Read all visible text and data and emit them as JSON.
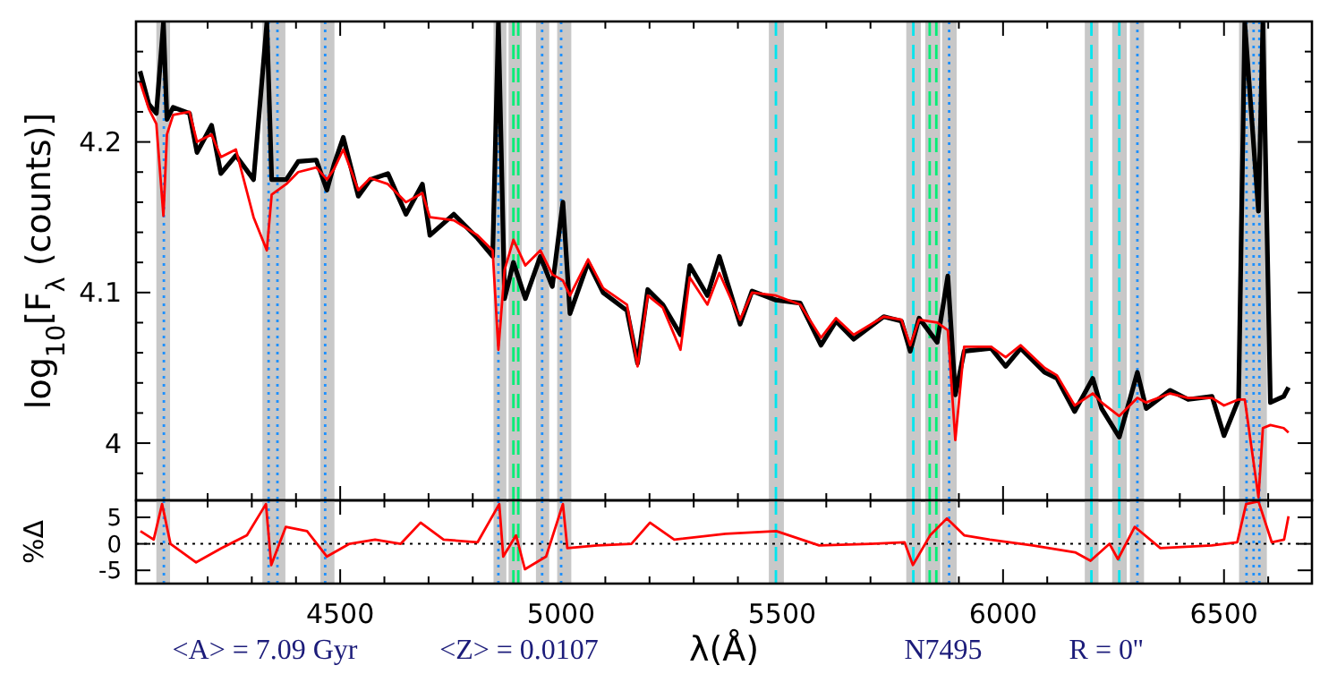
{
  "chart_data": [
    {
      "type": "line",
      "ylabel": "log$_{10}$[F$_{λ}$ (counts)]",
      "xlim": [
        4038,
        6699
      ],
      "ylim": [
        3.962,
        4.28
      ],
      "tick_labels": "y",
      "xticks": [
        {
          "value": 4100,
          "label": null
        },
        {
          "value": 4200,
          "label": null
        },
        {
          "value": 4300,
          "label": null
        },
        {
          "value": 4400,
          "label": null
        },
        4500,
        {
          "value": 4600,
          "label": null
        },
        {
          "value": 4700,
          "label": null
        },
        {
          "value": 4800,
          "label": null
        },
        {
          "value": 4900,
          "label": null
        },
        5000,
        {
          "value": 5100,
          "label": null
        },
        {
          "value": 5200,
          "label": null
        },
        {
          "value": 5300,
          "label": null
        },
        {
          "value": 5400,
          "label": null
        },
        5500,
        {
          "value": 5600,
          "label": null
        },
        {
          "value": 5700,
          "label": null
        },
        {
          "value": 5800,
          "label": null
        },
        {
          "value": 5900,
          "label": null
        },
        6000,
        {
          "value": 6100,
          "label": null
        },
        {
          "value": 6200,
          "label": null
        },
        {
          "value": 6300,
          "label": null
        },
        {
          "value": 6400,
          "label": null
        },
        6500,
        {
          "value": 6600,
          "label": null
        }
      ],
      "yticks": [
        {
          "value": 3.98,
          "label": null
        },
        4,
        {
          "value": 4.02,
          "label": null
        },
        {
          "value": 4.04,
          "label": null
        },
        {
          "value": 4.06,
          "label": null
        },
        {
          "value": 4.08,
          "label": null
        },
        4.1,
        {
          "value": 4.12,
          "label": null
        },
        {
          "value": 4.14,
          "label": null
        },
        {
          "value": 4.16,
          "label": null
        },
        {
          "value": 4.18,
          "label": null
        },
        4.2,
        {
          "value": 4.22,
          "label": null
        },
        {
          "value": 4.24,
          "label": null
        },
        {
          "value": 4.26,
          "label": null
        }
      ],
      "x": [
        4047,
        4067,
        4084,
        4100,
        4108,
        4122,
        4159,
        4176,
        4209,
        4230,
        4264,
        4304,
        4334,
        4345,
        4378,
        4405,
        4446,
        4470,
        4486,
        4507,
        4541,
        4568,
        4608,
        4649,
        4686,
        4703,
        4757,
        4811,
        4845,
        4858,
        4872,
        4892,
        4919,
        4953,
        4980,
        5004,
        5020,
        5061,
        5095,
        5149,
        5173,
        5196,
        5230,
        5270,
        5291,
        5331,
        5358,
        5405,
        5432,
        5486,
        5541,
        5588,
        5622,
        5662,
        5730,
        5770,
        5790,
        5810,
        5851,
        5875,
        5892,
        5912,
        5973,
        6006,
        6040,
        6094,
        6122,
        6162,
        6203,
        6223,
        6263,
        6304,
        6324,
        6378,
        6419,
        6473,
        6500,
        6533,
        6547,
        6578,
        6588,
        6605,
        6635,
        6646
      ],
      "series": [
        {
          "color": "#000000",
          "values": [
            4.247,
            4.225,
            4.219,
            4.279,
            4.215,
            4.223,
            4.219,
            4.193,
            4.211,
            4.179,
            4.191,
            4.175,
            4.279,
            4.175,
            4.175,
            4.187,
            4.188,
            4.168,
            4.185,
            4.203,
            4.164,
            4.175,
            4.179,
            4.152,
            4.172,
            4.138,
            4.152,
            4.136,
            4.124,
            4.279,
            4.096,
            4.12,
            4.096,
            4.124,
            4.104,
            4.16,
            4.086,
            4.12,
            4.1,
            4.088,
            4.053,
            4.102,
            4.092,
            4.072,
            4.118,
            4.098,
            4.124,
            4.079,
            4.101,
            4.095,
            4.093,
            4.065,
            4.081,
            4.069,
            4.084,
            4.081,
            4.061,
            4.083,
            4.067,
            4.111,
            4.032,
            4.061,
            4.063,
            4.051,
            4.063,
            4.047,
            4.043,
            4.021,
            4.043,
            4.023,
            4.004,
            4.047,
            4.023,
            4.035,
            4.029,
            4.031,
            4.005,
            4.029,
            4.279,
            4.154,
            4.279,
            4.027,
            4.031,
            4.037
          ]
        },
        {
          "color": "#ff0000",
          "values": [
            4.24,
            4.222,
            4.212,
            4.151,
            4.205,
            4.218,
            4.22,
            4.2,
            4.205,
            4.19,
            4.195,
            4.15,
            4.128,
            4.165,
            4.172,
            4.18,
            4.183,
            4.175,
            4.182,
            4.195,
            4.168,
            4.176,
            4.172,
            4.16,
            4.166,
            4.15,
            4.148,
            4.138,
            4.128,
            4.062,
            4.115,
            4.135,
            4.118,
            4.128,
            4.112,
            4.108,
            4.098,
            4.122,
            4.103,
            4.092,
            4.051,
            4.098,
            4.09,
            4.062,
            4.11,
            4.092,
            4.113,
            4.082,
            4.1,
            4.098,
            4.092,
            4.07,
            4.083,
            4.072,
            4.084,
            4.082,
            4.065,
            4.082,
            4.08,
            4.075,
            4.002,
            4.064,
            4.064,
            4.057,
            4.065,
            4.05,
            4.045,
            4.025,
            4.033,
            4.027,
            4.018,
            4.03,
            4.027,
            4.033,
            4.03,
            4.03,
            4.025,
            4.029,
            4.029,
            3.964,
            4.01,
            4.012,
            4.01,
            4.007
          ]
        }
      ],
      "bands": [
        {
          "axis": "x",
          "from": 4084,
          "to": 4115,
          "color": "#c8c8c8"
        },
        {
          "axis": "x",
          "from": 4324,
          "to": 4376,
          "color": "#c8c8c8"
        },
        {
          "axis": "x",
          "from": 4455,
          "to": 4487,
          "color": "#c8c8c8"
        },
        {
          "axis": "x",
          "from": 4847,
          "to": 4876,
          "color": "#c8c8c8"
        },
        {
          "axis": "x",
          "from": 4881,
          "to": 4911,
          "color": "#c8c8c8"
        },
        {
          "axis": "x",
          "from": 4943,
          "to": 4973,
          "color": "#c8c8c8"
        },
        {
          "axis": "x",
          "from": 4991,
          "to": 5023,
          "color": "#c8c8c8"
        },
        {
          "axis": "x",
          "from": 5470,
          "to": 5504,
          "color": "#c8c8c8"
        },
        {
          "axis": "x",
          "from": 5781,
          "to": 5814,
          "color": "#c8c8c8"
        },
        {
          "axis": "x",
          "from": 5824,
          "to": 5858,
          "color": "#c8c8c8"
        },
        {
          "axis": "x",
          "from": 5862,
          "to": 5895,
          "color": "#c8c8c8"
        },
        {
          "axis": "x",
          "from": 6185,
          "to": 6216,
          "color": "#c8c8c8"
        },
        {
          "axis": "x",
          "from": 6247,
          "to": 6280,
          "color": "#c8c8c8"
        },
        {
          "axis": "x",
          "from": 6287,
          "to": 6319,
          "color": "#c8c8c8"
        },
        {
          "axis": "x",
          "from": 6534,
          "to": 6597,
          "color": "#c8c8c8"
        }
      ],
      "ref_lines": [
        {
          "axis": "x",
          "value": 4101,
          "color": "#1e90ff",
          "line_style": "dotted"
        },
        {
          "axis": "x",
          "value": 4338,
          "color": "#1e90ff",
          "line_style": "dotted"
        },
        {
          "axis": "x",
          "value": 4358,
          "color": "#1e90ff",
          "line_style": "dotted"
        },
        {
          "axis": "x",
          "value": 4466,
          "color": "#1e90ff",
          "line_style": "dotted"
        },
        {
          "axis": "x",
          "value": 4858,
          "color": "#1e90ff",
          "line_style": "dotted"
        },
        {
          "axis": "x",
          "value": 4892,
          "color": "#00ee76",
          "line_style": "dashed"
        },
        {
          "axis": "x",
          "value": 4903,
          "color": "#00ee76",
          "line_style": "dashed"
        },
        {
          "axis": "x",
          "value": 4957,
          "color": "#1e90ff",
          "line_style": "dotted"
        },
        {
          "axis": "x",
          "value": 5000,
          "color": "#1e90ff",
          "line_style": "dotted"
        },
        {
          "axis": "x",
          "value": 5486,
          "color": "#00e5ee",
          "line_style": "dashed"
        },
        {
          "axis": "x",
          "value": 5797,
          "color": "#00e5ee",
          "line_style": "dashed"
        },
        {
          "axis": "x",
          "value": 5834,
          "color": "#00ee76",
          "line_style": "dashed"
        },
        {
          "axis": "x",
          "value": 5849,
          "color": "#00ee76",
          "line_style": "dashed"
        },
        {
          "axis": "x",
          "value": 5878,
          "color": "#1e90ff",
          "line_style": "dotted"
        },
        {
          "axis": "x",
          "value": 6200,
          "color": "#00e5ee",
          "line_style": "dashed"
        },
        {
          "axis": "x",
          "value": 6263,
          "color": "#00e5ee",
          "line_style": "dashed"
        },
        {
          "axis": "x",
          "value": 6304,
          "color": "#1e90ff",
          "line_style": "dotted"
        },
        {
          "axis": "x",
          "value": 6551,
          "color": "#1e90ff",
          "line_style": "dotted"
        },
        {
          "axis": "x",
          "value": 6567,
          "color": "#1e90ff",
          "line_style": "dotted"
        },
        {
          "axis": "x",
          "value": 6580,
          "color": "#1e90ff",
          "line_style": "dotted"
        }
      ]
    },
    {
      "type": "line",
      "xlabel": "λ(Å)",
      "ylabel": "%Δ",
      "xlim": [
        4038,
        6699
      ],
      "ylim": [
        -7.5,
        8.2
      ],
      "xticks": [
        {
          "value": 4100,
          "label": null
        },
        {
          "value": 4200,
          "label": null
        },
        {
          "value": 4300,
          "label": null
        },
        {
          "value": 4400,
          "label": null
        },
        4500,
        {
          "value": 4600,
          "label": null
        },
        {
          "value": 4700,
          "label": null
        },
        {
          "value": 4800,
          "label": null
        },
        {
          "value": 4900,
          "label": null
        },
        5000,
        {
          "value": 5100,
          "label": null
        },
        {
          "value": 5200,
          "label": null
        },
        {
          "value": 5300,
          "label": null
        },
        {
          "value": 5400,
          "label": null
        },
        5500,
        {
          "value": 5600,
          "label": null
        },
        {
          "value": 5700,
          "label": null
        },
        {
          "value": 5800,
          "label": null
        },
        {
          "value": 5900,
          "label": null
        },
        6000,
        {
          "value": 6100,
          "label": null
        },
        {
          "value": 6200,
          "label": null
        },
        {
          "value": 6300,
          "label": null
        },
        {
          "value": 6400,
          "label": null
        },
        6500,
        {
          "value": 6600,
          "label": null
        }
      ],
      "yticks": [
        -5,
        0,
        5
      ],
      "x": [
        4048,
        4078,
        4097,
        4116,
        4174,
        4232,
        4289,
        4332,
        4344,
        4377,
        4425,
        4470,
        4521,
        4579,
        4637,
        4682,
        4734,
        4811,
        4860,
        4869,
        4898,
        4918,
        4966,
        5004,
        5014,
        5082,
        5159,
        5201,
        5256,
        5372,
        5487,
        5584,
        5700,
        5777,
        5796,
        5835,
        5873,
        5912,
        5970,
        6067,
        6163,
        6198,
        6241,
        6260,
        6298,
        6356,
        6472,
        6530,
        6550,
        6578,
        6608,
        6636,
        6646
      ],
      "series": [
        {
          "color": "#ff0000",
          "values": [
            2.4,
            0.8,
            7.5,
            0,
            -3.5,
            -0.8,
            1.6,
            7.5,
            -4,
            3.2,
            2.4,
            -2.4,
            0,
            0.8,
            0,
            4,
            0.8,
            0.3,
            7.5,
            -2.4,
            1.6,
            -4.8,
            -2.4,
            7.5,
            -0.8,
            -0.3,
            0,
            4,
            0.8,
            1.9,
            2.4,
            -0.3,
            0,
            0.3,
            -4,
            1.6,
            4.8,
            1.6,
            0.8,
            -0.3,
            -1.6,
            -3.2,
            0,
            -2.9,
            3.2,
            -0.8,
            -0.3,
            0.3,
            7.5,
            8,
            0.3,
            0.8,
            5.2
          ]
        }
      ],
      "bands": [
        {
          "axis": "x",
          "from": 4084,
          "to": 4115,
          "color": "#c8c8c8"
        },
        {
          "axis": "x",
          "from": 4324,
          "to": 4376,
          "color": "#c8c8c8"
        },
        {
          "axis": "x",
          "from": 4455,
          "to": 4487,
          "color": "#c8c8c8"
        },
        {
          "axis": "x",
          "from": 4847,
          "to": 4876,
          "color": "#c8c8c8"
        },
        {
          "axis": "x",
          "from": 4881,
          "to": 4911,
          "color": "#c8c8c8"
        },
        {
          "axis": "x",
          "from": 4943,
          "to": 4973,
          "color": "#c8c8c8"
        },
        {
          "axis": "x",
          "from": 4991,
          "to": 5023,
          "color": "#c8c8c8"
        },
        {
          "axis": "x",
          "from": 5470,
          "to": 5504,
          "color": "#c8c8c8"
        },
        {
          "axis": "x",
          "from": 5781,
          "to": 5814,
          "color": "#c8c8c8"
        },
        {
          "axis": "x",
          "from": 5824,
          "to": 5858,
          "color": "#c8c8c8"
        },
        {
          "axis": "x",
          "from": 5862,
          "to": 5895,
          "color": "#c8c8c8"
        },
        {
          "axis": "x",
          "from": 6185,
          "to": 6216,
          "color": "#c8c8c8"
        },
        {
          "axis": "x",
          "from": 6247,
          "to": 6280,
          "color": "#c8c8c8"
        },
        {
          "axis": "x",
          "from": 6287,
          "to": 6319,
          "color": "#c8c8c8"
        },
        {
          "axis": "x",
          "from": 6534,
          "to": 6597,
          "color": "#c8c8c8"
        }
      ],
      "ref_lines": [
        {
          "axis": "y",
          "value": 0,
          "color": "#000000",
          "line_style": "dotted"
        },
        {
          "axis": "x",
          "value": 4101,
          "color": "#1e90ff",
          "line_style": "dotted"
        },
        {
          "axis": "x",
          "value": 4338,
          "color": "#1e90ff",
          "line_style": "dotted"
        },
        {
          "axis": "x",
          "value": 4358,
          "color": "#1e90ff",
          "line_style": "dotted"
        },
        {
          "axis": "x",
          "value": 4466,
          "color": "#1e90ff",
          "line_style": "dotted"
        },
        {
          "axis": "x",
          "value": 4858,
          "color": "#1e90ff",
          "line_style": "dotted"
        },
        {
          "axis": "x",
          "value": 4892,
          "color": "#00ee76",
          "line_style": "dashed"
        },
        {
          "axis": "x",
          "value": 4903,
          "color": "#00ee76",
          "line_style": "dashed"
        },
        {
          "axis": "x",
          "value": 4957,
          "color": "#1e90ff",
          "line_style": "dotted"
        },
        {
          "axis": "x",
          "value": 5000,
          "color": "#1e90ff",
          "line_style": "dotted"
        },
        {
          "axis": "x",
          "value": 5486,
          "color": "#00e5ee",
          "line_style": "dashed"
        },
        {
          "axis": "x",
          "value": 5797,
          "color": "#00e5ee",
          "line_style": "dashed"
        },
        {
          "axis": "x",
          "value": 5834,
          "color": "#00ee76",
          "line_style": "dashed"
        },
        {
          "axis": "x",
          "value": 5849,
          "color": "#00ee76",
          "line_style": "dashed"
        },
        {
          "axis": "x",
          "value": 5878,
          "color": "#1e90ff",
          "line_style": "dotted"
        },
        {
          "axis": "x",
          "value": 6200,
          "color": "#00e5ee",
          "line_style": "dashed"
        },
        {
          "axis": "x",
          "value": 6263,
          "color": "#00e5ee",
          "line_style": "dashed"
        },
        {
          "axis": "x",
          "value": 6304,
          "color": "#1e90ff",
          "line_style": "dotted"
        },
        {
          "axis": "x",
          "value": 6551,
          "color": "#1e90ff",
          "line_style": "dotted"
        },
        {
          "axis": "x",
          "value": 6567,
          "color": "#1e90ff",
          "line_style": "dotted"
        },
        {
          "axis": "x",
          "value": 6580,
          "color": "#1e90ff",
          "line_style": "dotted"
        }
      ],
      "annotations": [
        "<A> = 7.09 Gyr",
        "<Z> = 0.0107",
        "N7495",
        "R = 0''"
      ]
    }
  ]
}
